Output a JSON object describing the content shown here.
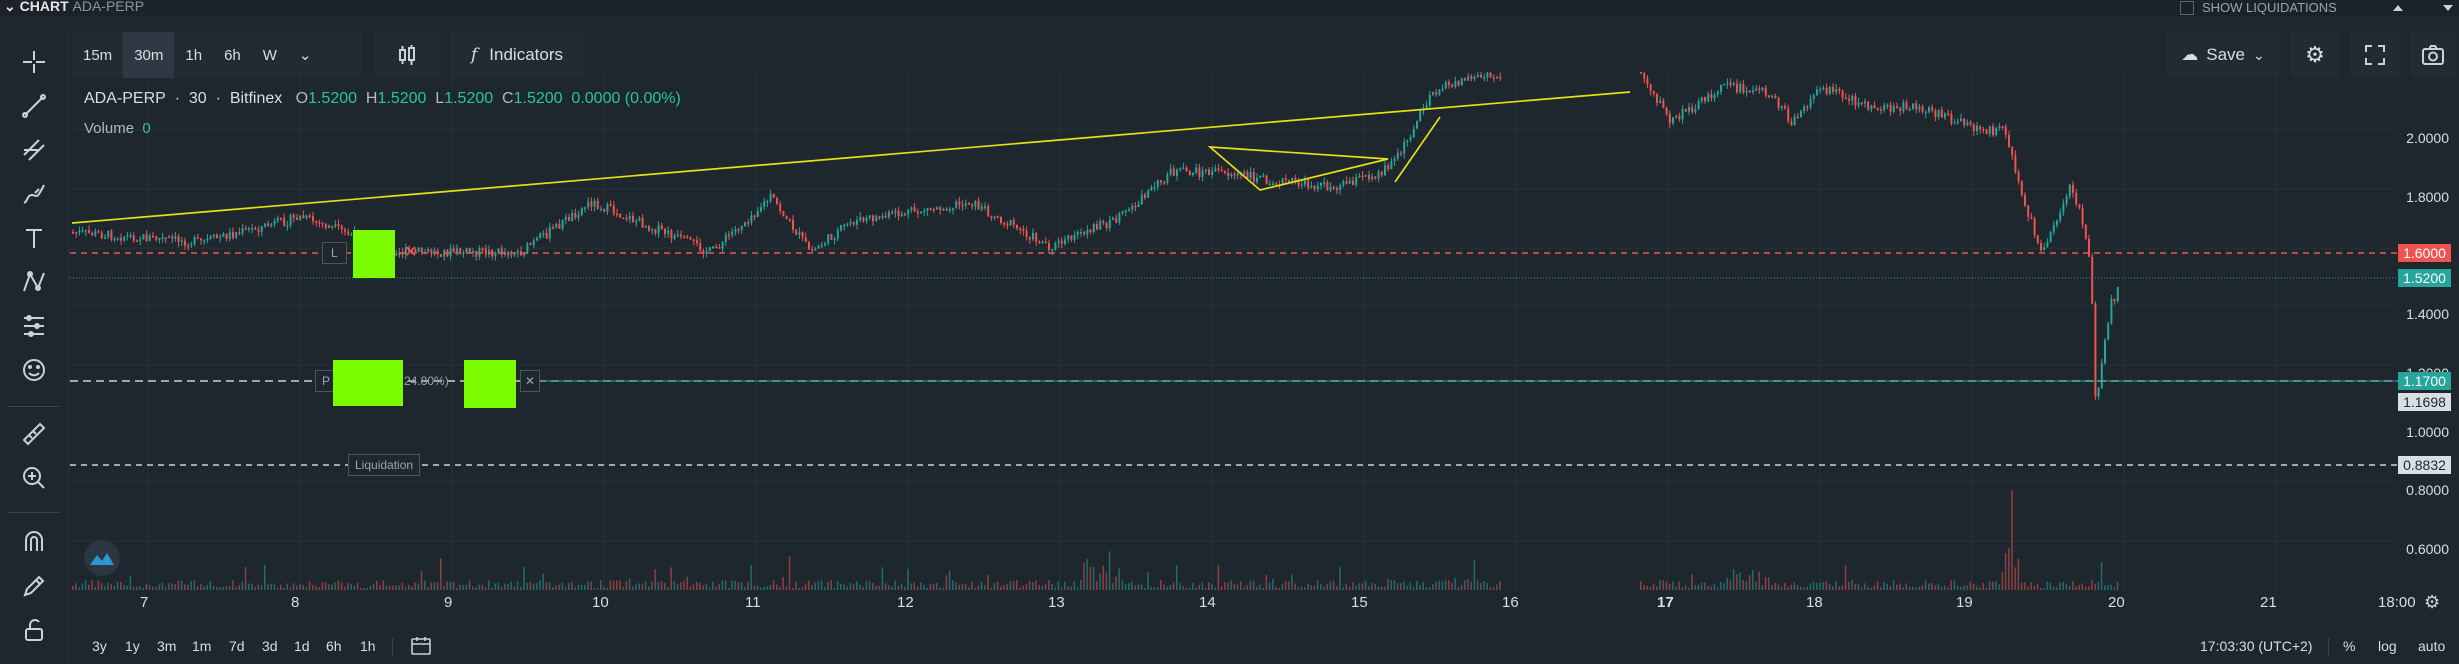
{
  "header": {
    "title": "CHART",
    "symbol": "ADA-PERP",
    "show_liquidations": "SHOW LIQUIDATIONS"
  },
  "timeframes": [
    "15m",
    "30m",
    "1h",
    "6h",
    "W"
  ],
  "active_timeframe": "30m",
  "toolbar": {
    "indicators_label": "Indicators",
    "save_label": "Save"
  },
  "legend": {
    "symbol": "ADA-PERP",
    "interval": "30",
    "exchange": "Bitfinex",
    "o_label": "O",
    "o": "1.5200",
    "h_label": "H",
    "h": "1.5200",
    "l_label": "L",
    "l": "1.5200",
    "c_label": "C",
    "c": "1.5200",
    "change": "0.0000 (0.00%)",
    "volume_label": "Volume",
    "volume": "0"
  },
  "price_axis": [
    "2.0000",
    "1.8000",
    "1.4000",
    "1.2000",
    "1.0000",
    "0.8000",
    "0.6000"
  ],
  "price_tags": {
    "order": "1.6000",
    "last": "1.5200",
    "position": "1.1700",
    "avg": "1.1698",
    "liquidation": "0.8832"
  },
  "time_axis": [
    "7",
    "8",
    "9",
    "10",
    "11",
    "12",
    "13",
    "14",
    "15",
    "16",
    "17",
    "18",
    "19",
    "20",
    "21",
    "18:00"
  ],
  "chart_labels": {
    "order_tag": "L",
    "position_tag": "P",
    "position_pct": "24.80%)",
    "liquidation_tag": "Liquidation"
  },
  "ranges": [
    "3y",
    "1y",
    "3m",
    "1m",
    "7d",
    "3d",
    "1d",
    "6h",
    "1h"
  ],
  "status": {
    "time": "17:03:30 (UTC+2)",
    "percent": "%",
    "log": "log",
    "auto": "auto"
  },
  "colors": {
    "bg": "#1e262e",
    "up": "#26a69a",
    "down": "#ef5350",
    "trend": "#e5e013",
    "order_line": "#ef5350",
    "highlight": "#7cfc00"
  }
}
